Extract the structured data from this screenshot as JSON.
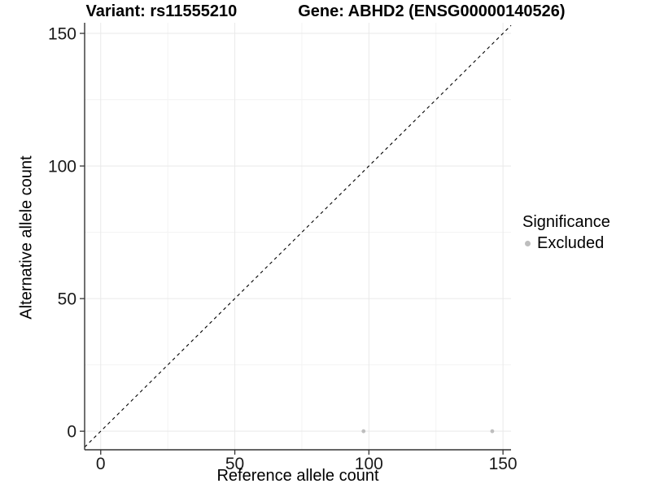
{
  "chart_data": {
    "type": "scatter",
    "title_left": "Variant: rs11555210",
    "title_right": "Gene: ABHD2 (ENSG00000140526)",
    "xlabel": "Reference allele count",
    "ylabel": "Alternative allele count",
    "xlim": [
      -6,
      153
    ],
    "ylim": [
      -7,
      154
    ],
    "x_ticks": [
      0,
      50,
      100,
      150
    ],
    "y_ticks": [
      0,
      50,
      100,
      150
    ],
    "minor_ticks": [
      25,
      75,
      125
    ],
    "grid": "major+minor",
    "identity_line": {
      "slope": 1,
      "intercept": 0,
      "style": "dashed",
      "color": "#000000"
    },
    "series": [
      {
        "name": "Excluded",
        "color": "#bebebe",
        "points": [
          {
            "x": 98,
            "y": 0
          },
          {
            "x": 146,
            "y": 0
          }
        ]
      }
    ],
    "legend": {
      "title": "Significance",
      "position": "right",
      "items": [
        {
          "label": "Excluded",
          "color": "#bebebe"
        }
      ]
    },
    "colors": {
      "background": "#ffffff",
      "title": "#000000",
      "axis_line": "#333333",
      "tick_mark": "#333333",
      "tick_label": "#1a1a1a",
      "grid_major": "#e9e9e9",
      "grid_minor": "#f3f3f3"
    }
  }
}
